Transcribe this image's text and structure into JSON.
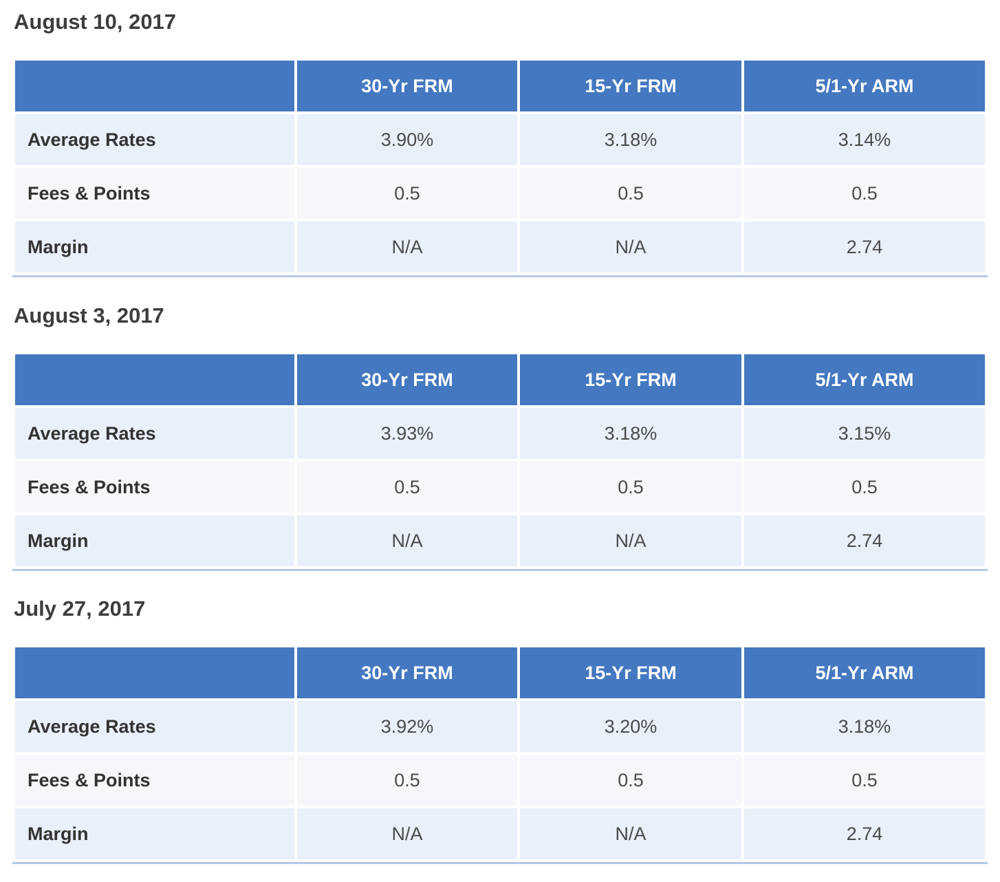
{
  "tables": [
    {
      "date": "August 10, 2017",
      "headers": [
        "",
        "30-Yr FRM",
        "15-Yr FRM",
        "5/1-Yr ARM"
      ],
      "rows": [
        {
          "label": "Average Rates",
          "values": [
            "3.90%",
            "3.18%",
            "3.14%"
          ]
        },
        {
          "label": "Fees & Points",
          "values": [
            "0.5",
            "0.5",
            "0.5"
          ]
        },
        {
          "label": "Margin",
          "values": [
            "N/A",
            "N/A",
            "2.74"
          ]
        }
      ]
    },
    {
      "date": "August 3, 2017",
      "headers": [
        "",
        "30-Yr FRM",
        "15-Yr FRM",
        "5/1-Yr ARM"
      ],
      "rows": [
        {
          "label": "Average Rates",
          "values": [
            "3.93%",
            "3.18%",
            "3.15%"
          ]
        },
        {
          "label": "Fees & Points",
          "values": [
            "0.5",
            "0.5",
            "0.5"
          ]
        },
        {
          "label": "Margin",
          "values": [
            "N/A",
            "N/A",
            "2.74"
          ]
        }
      ]
    },
    {
      "date": "July 27, 2017",
      "headers": [
        "",
        "30-Yr FRM",
        "15-Yr FRM",
        "5/1-Yr ARM"
      ],
      "rows": [
        {
          "label": "Average Rates",
          "values": [
            "3.92%",
            "3.20%",
            "3.18%"
          ]
        },
        {
          "label": "Fees & Points",
          "values": [
            "0.5",
            "0.5",
            "0.5"
          ]
        },
        {
          "label": "Margin",
          "values": [
            "N/A",
            "N/A",
            "2.74"
          ]
        }
      ]
    }
  ]
}
